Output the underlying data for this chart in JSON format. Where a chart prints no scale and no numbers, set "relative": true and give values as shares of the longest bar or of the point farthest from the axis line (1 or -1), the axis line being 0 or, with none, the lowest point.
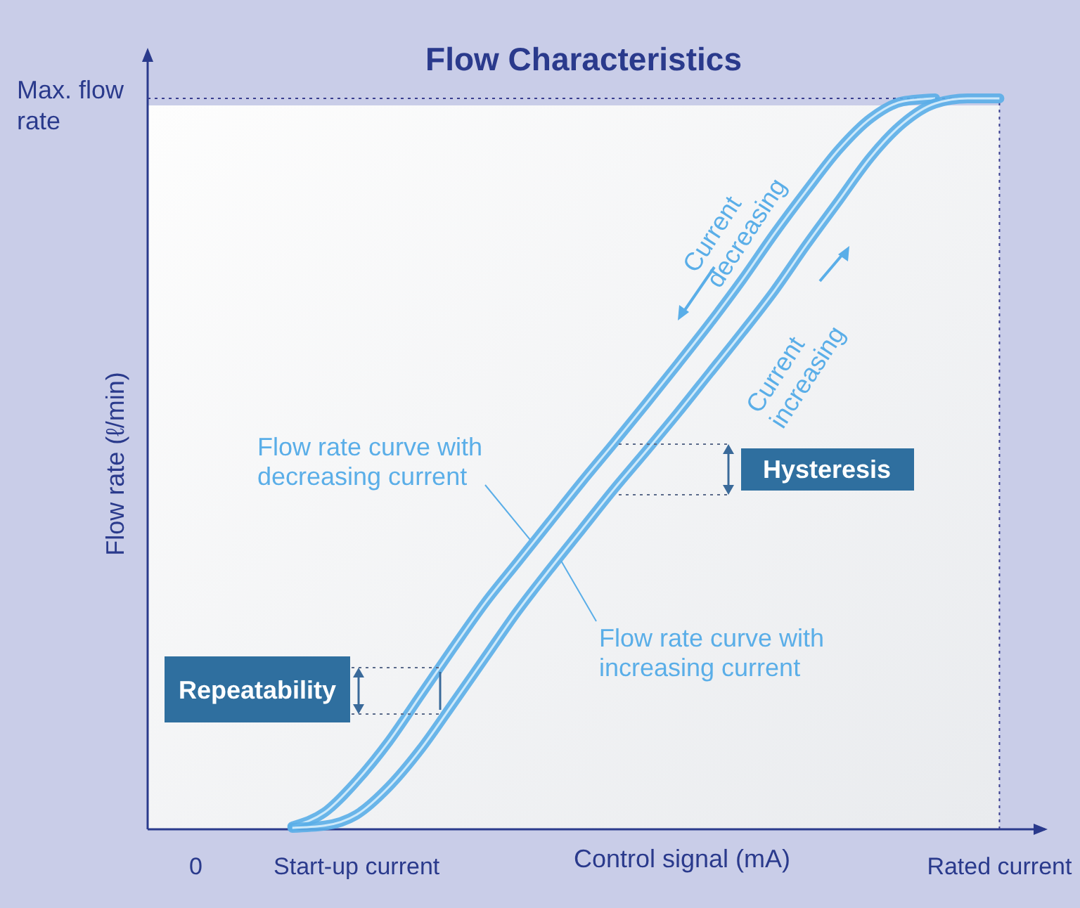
{
  "chart_data": {
    "type": "line",
    "title": "Flow Characteristics",
    "xlabel": "Control signal (mA)",
    "ylabel": "Flow rate (ℓ/min)",
    "relative": true,
    "marker": "none",
    "line_style": "solid",
    "categories": [
      null,
      "0",
      null,
      null,
      null,
      null,
      "Start-up current",
      null,
      null,
      null,
      null,
      null,
      null,
      null,
      null,
      null,
      null,
      null,
      null,
      null,
      null,
      null,
      null,
      null,
      null,
      null,
      "Rated current",
      null
    ],
    "ref_lines": [
      {
        "axis": "y",
        "value": 1,
        "label": "Max. flow rate",
        "color": "#3a3f8f",
        "line_style": "dotted"
      },
      {
        "axis": "x",
        "value": "Rated current",
        "label": null,
        "color": "#3a3f8f",
        "line_style": "dotted"
      }
    ],
    "series": [
      {
        "name": "Flow rate curve with decreasing current",
        "color": "#5aaee8",
        "values": [
          null,
          null,
          null,
          null,
          0.004,
          0.023,
          0.066,
          0.12,
          0.184,
          0.248,
          0.31,
          0.365,
          0.42,
          0.475,
          0.528,
          0.582,
          0.637,
          0.693,
          0.752,
          0.815,
          0.874,
          0.93,
          0.973,
          0.996,
          1,
          null,
          null,
          null
        ]
      },
      {
        "name": "Flow rate curve with increasing current",
        "color": "#5aaee8",
        "values": [
          null,
          null,
          null,
          null,
          0.002,
          0.005,
          0.02,
          0.058,
          0.11,
          0.172,
          0.235,
          0.298,
          0.355,
          0.41,
          0.465,
          0.517,
          0.57,
          0.625,
          0.68,
          0.737,
          0.8,
          0.86,
          0.92,
          0.966,
          0.993,
          1,
          1,
          null
        ]
      }
    ],
    "annotations": [
      "Current decreasing",
      "Current increasing",
      "Hysteresis",
      "Repeatability"
    ]
  }
}
